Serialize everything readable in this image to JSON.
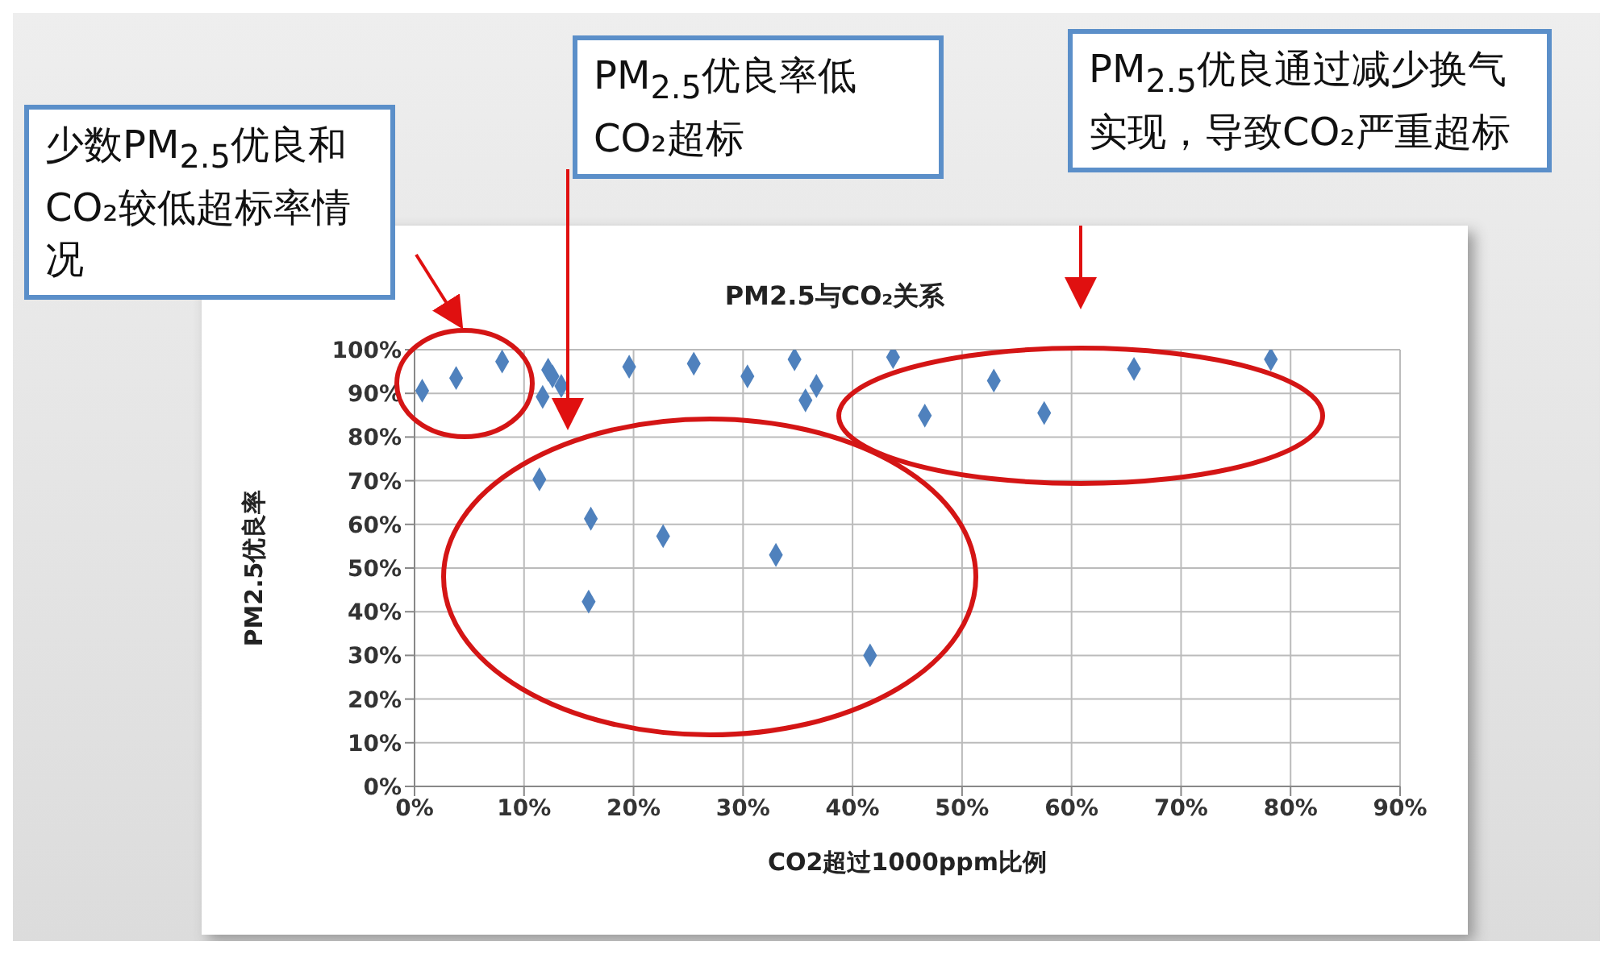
{
  "chart_data": {
    "type": "scatter",
    "title": "PM2.5与CO₂关系",
    "xlabel": "CO2超过1000ppm比例",
    "ylabel": "PM2.5优良率",
    "annotations": [
      "少数PM$_{2.5}$优良和CO₂较低超标率情况",
      "PM$_{2.5}$优良率低CO₂超标",
      "PM$_{2.5}$优良通过减少换气实现，导致CO₂严重超标"
    ],
    "series": [
      {
        "color": "#4f81bd",
        "x": [
          0.7,
          3.8,
          8.0,
          12.2,
          12.6,
          13.4,
          11.7,
          19.6,
          25.5,
          30.4,
          34.7,
          36.7,
          35.7,
          11.4,
          16.1,
          22.7,
          33.0,
          15.9,
          41.6,
          43.7,
          46.6,
          52.9,
          57.5,
          65.7,
          78.2
        ],
        "values": [
          90.6,
          93.5,
          97.3,
          95.4,
          93.9,
          91.7,
          89.2,
          96.1,
          96.8,
          93.9,
          97.8,
          91.7,
          88.4,
          70.3,
          61.3,
          57.3,
          53.0,
          42.3,
          30.0,
          98.3,
          84.9,
          92.9,
          85.5,
          95.6,
          97.8
        ]
      }
    ],
    "xlim": [
      0,
      90
    ],
    "xticks": [
      {
        "value": 0,
        "label": "0%"
      },
      {
        "value": 10,
        "label": "10%"
      },
      {
        "value": 20,
        "label": "20%"
      },
      {
        "value": 30,
        "label": "30%"
      },
      {
        "value": 40,
        "label": "40%"
      },
      {
        "value": 50,
        "label": "50%"
      },
      {
        "value": 60,
        "label": "60%"
      },
      {
        "value": 70,
        "label": "70%"
      },
      {
        "value": 80,
        "label": "80%"
      },
      {
        "value": 90,
        "label": "90%"
      }
    ],
    "ylim": [
      0,
      100
    ],
    "yticks": [
      {
        "value": 0,
        "label": "0%"
      },
      {
        "value": 10,
        "label": "10%"
      },
      {
        "value": 20,
        "label": "20%"
      },
      {
        "value": 30,
        "label": "30%"
      },
      {
        "value": 40,
        "label": "40%"
      },
      {
        "value": 50,
        "label": "50%"
      },
      {
        "value": 60,
        "label": "60%"
      },
      {
        "value": 70,
        "label": "70%"
      },
      {
        "value": 80,
        "label": "80%"
      },
      {
        "value": 90,
        "label": "90%"
      },
      {
        "value": 100,
        "label": "100%"
      }
    ],
    "grid": true,
    "marker": "diamond"
  }
}
